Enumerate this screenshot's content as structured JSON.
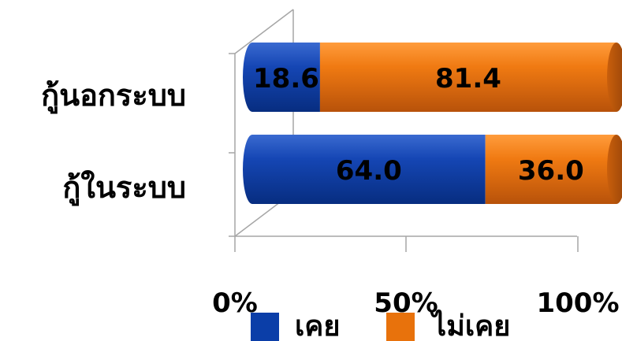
{
  "chart_data": {
    "type": "bar",
    "orientation": "horizontal",
    "stacked": "percent",
    "categories": [
      "กู้นอกระบบ",
      "กู้ในระบบ"
    ],
    "series": [
      {
        "name": "เคย",
        "values": [
          18.6,
          64.0
        ],
        "labels": [
          "18.6",
          "64.0"
        ],
        "color": "#0b3ea8"
      },
      {
        "name": "ไม่เคย",
        "values": [
          81.4,
          36.0
        ],
        "labels": [
          "81.4",
          "36.0"
        ],
        "color": "#e8720c"
      }
    ],
    "x_ticks": [
      "0%",
      "50%",
      "100%"
    ],
    "xlim": [
      0,
      100
    ],
    "legend_position": "bottom",
    "grid": false
  }
}
